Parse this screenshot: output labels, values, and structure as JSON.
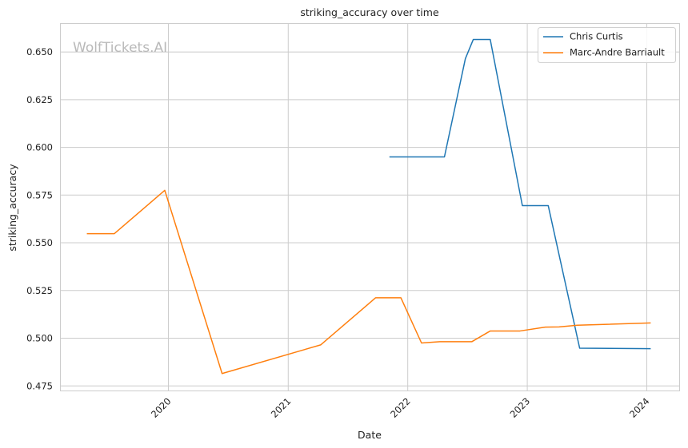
{
  "chart_data": {
    "type": "line",
    "title": "striking_accuracy over time",
    "xlabel": "Date",
    "ylabel": "striking_accuracy",
    "watermark": "WolfTickets.AI",
    "x_type": "date",
    "xlim": [
      "2019-02-04",
      "2024-04-09"
    ],
    "ylim": [
      0.4726,
      0.6651
    ],
    "x_ticks": [
      {
        "label": "2020",
        "date": "2020-01-01"
      },
      {
        "label": "2021",
        "date": "2021-01-01"
      },
      {
        "label": "2022",
        "date": "2022-01-01"
      },
      {
        "label": "2023",
        "date": "2023-01-01"
      },
      {
        "label": "2024",
        "date": "2024-01-01"
      }
    ],
    "y_ticks": [
      0.475,
      0.5,
      0.525,
      0.55,
      0.575,
      0.6,
      0.625,
      0.65
    ],
    "y_tick_labels": [
      "0.475",
      "0.500",
      "0.525",
      "0.550",
      "0.575",
      "0.600",
      "0.625",
      "0.650"
    ],
    "grid": true,
    "legend_position": "top-right",
    "series": [
      {
        "name": "Chris Curtis",
        "color": "#1f77b4",
        "points": [
          {
            "x": "2021-11-06",
            "y": 0.595
          },
          {
            "x": "2022-04-23",
            "y": 0.595
          },
          {
            "x": "2022-06-26",
            "y": 0.6465
          },
          {
            "x": "2022-07-20",
            "y": 0.6565
          },
          {
            "x": "2022-09-10",
            "y": 0.6565
          },
          {
            "x": "2022-12-17",
            "y": 0.5695
          },
          {
            "x": "2023-03-06",
            "y": 0.5695
          },
          {
            "x": "2023-06-10",
            "y": 0.4948
          },
          {
            "x": "2024-01-13",
            "y": 0.4945
          }
        ]
      },
      {
        "name": "Marc-Andre Barriault",
        "color": "#ff7f0e",
        "points": [
          {
            "x": "2019-04-27",
            "y": 0.5548
          },
          {
            "x": "2019-07-20",
            "y": 0.5548
          },
          {
            "x": "2019-12-21",
            "y": 0.5775
          },
          {
            "x": "2020-06-13",
            "y": 0.4815
          },
          {
            "x": "2021-04-10",
            "y": 0.4965
          },
          {
            "x": "2021-09-25",
            "y": 0.5212
          },
          {
            "x": "2021-12-11",
            "y": 0.5212
          },
          {
            "x": "2022-02-12",
            "y": 0.4975
          },
          {
            "x": "2022-04-09",
            "y": 0.4982
          },
          {
            "x": "2022-07-16",
            "y": 0.4982
          },
          {
            "x": "2022-09-10",
            "y": 0.5038
          },
          {
            "x": "2022-12-10",
            "y": 0.5038
          },
          {
            "x": "2023-02-25",
            "y": 0.5058
          },
          {
            "x": "2023-04-08",
            "y": 0.5059
          },
          {
            "x": "2023-06-03",
            "y": 0.5068
          },
          {
            "x": "2024-01-13",
            "y": 0.508
          }
        ]
      }
    ]
  }
}
